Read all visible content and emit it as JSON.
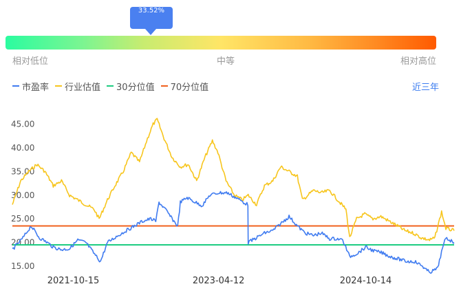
{
  "gauge": {
    "percent_label": "33.52%",
    "percent": 33.52,
    "low_label": "相对低位",
    "mid_label": "中等",
    "high_label": "相对高位"
  },
  "legend": [
    {
      "label": "市盈率",
      "color": "#3f7bf0"
    },
    {
      "label": "行业估值",
      "color": "#f7c51c"
    },
    {
      "label": "30分位值",
      "color": "#1ccc80"
    },
    {
      "label": "70分位值",
      "color": "#f0601c"
    }
  ],
  "range_label": "近三年",
  "chart_data": {
    "type": "line",
    "x_ticks": [
      "2021-10-15",
      "2023-04-12",
      "2024-10-14"
    ],
    "y_ticks": [
      "15.00",
      "20.00",
      "25.00",
      "30.00",
      "35.00",
      "40.00",
      "45.00"
    ],
    "ylim": [
      13,
      48
    ],
    "xlim": [
      "2021-03-01",
      "2025-09-10"
    ],
    "series": [
      {
        "name": "市盈率",
        "color": "#3f7bf0",
        "points": [
          [
            "2021-03-01",
            18.5
          ],
          [
            "2021-04-10",
            21
          ],
          [
            "2021-05-10",
            23.5
          ],
          [
            "2021-06-10",
            21
          ],
          [
            "2021-07-10",
            20
          ],
          [
            "2021-08-01",
            19
          ],
          [
            "2021-09-01",
            18.5
          ],
          [
            "2021-10-01",
            18.7
          ],
          [
            "2021-11-01",
            20.5
          ],
          [
            "2021-12-01",
            20
          ],
          [
            "2022-01-10",
            17
          ],
          [
            "2022-01-25",
            16
          ],
          [
            "2022-02-20",
            20
          ],
          [
            "2022-04-01",
            21.5
          ],
          [
            "2022-05-01",
            22.5
          ],
          [
            "2022-06-01",
            23.5
          ],
          [
            "2022-07-01",
            24.5
          ],
          [
            "2022-08-01",
            25
          ],
          [
            "2022-08-20",
            24.5
          ],
          [
            "2022-09-01",
            28.5
          ],
          [
            "2022-09-25",
            27
          ],
          [
            "2022-10-20",
            25
          ],
          [
            "2022-11-10",
            23.5
          ],
          [
            "2022-11-20",
            28.5
          ],
          [
            "2022-12-15",
            29.5
          ],
          [
            "2023-01-15",
            28.5
          ],
          [
            "2023-02-10",
            27.8
          ],
          [
            "2023-03-10",
            30
          ],
          [
            "2023-04-12",
            30.5
          ],
          [
            "2023-05-15",
            30.5
          ],
          [
            "2023-06-15",
            29.5
          ],
          [
            "2023-07-15",
            28.5
          ],
          [
            "2023-07-31",
            28
          ],
          [
            "2023-08-01",
            20
          ],
          [
            "2023-09-01",
            21
          ],
          [
            "2023-10-01",
            22
          ],
          [
            "2023-11-01",
            22.5
          ],
          [
            "2023-12-01",
            24
          ],
          [
            "2024-01-01",
            25.5
          ],
          [
            "2024-02-01",
            23.5
          ],
          [
            "2024-03-01",
            22
          ],
          [
            "2024-04-01",
            21.5
          ],
          [
            "2024-05-01",
            22
          ],
          [
            "2024-06-01",
            20.8
          ],
          [
            "2024-07-01",
            20.8
          ],
          [
            "2024-07-20",
            20.5
          ],
          [
            "2024-08-15",
            17
          ],
          [
            "2024-09-15",
            17.8
          ],
          [
            "2024-10-14",
            19
          ],
          [
            "2024-11-15",
            18.2
          ],
          [
            "2024-12-15",
            17.8
          ],
          [
            "2025-01-15",
            17
          ],
          [
            "2025-02-15",
            16.5
          ],
          [
            "2025-03-15",
            16
          ],
          [
            "2025-04-15",
            16
          ],
          [
            "2025-05-15",
            15
          ],
          [
            "2025-06-01",
            14
          ],
          [
            "2025-06-15",
            13.8
          ],
          [
            "2025-07-10",
            14.5
          ],
          [
            "2025-07-25",
            18
          ],
          [
            "2025-08-10",
            21
          ],
          [
            "2025-09-10",
            20
          ]
        ]
      },
      {
        "name": "行业估值",
        "color": "#f7c51c",
        "points": [
          [
            "2021-03-01",
            28
          ],
          [
            "2021-04-01",
            33
          ],
          [
            "2021-05-01",
            35
          ],
          [
            "2021-06-01",
            36.5
          ],
          [
            "2021-07-01",
            35
          ],
          [
            "2021-08-01",
            32
          ],
          [
            "2021-09-01",
            33
          ],
          [
            "2021-10-01",
            30
          ],
          [
            "2021-11-01",
            29
          ],
          [
            "2021-12-01",
            28
          ],
          [
            "2022-01-01",
            27
          ],
          [
            "2022-01-20",
            25
          ],
          [
            "2022-02-20",
            29
          ],
          [
            "2022-03-20",
            32
          ],
          [
            "2022-04-20",
            35
          ],
          [
            "2022-05-20",
            39
          ],
          [
            "2022-06-20",
            37
          ],
          [
            "2022-07-20",
            42
          ],
          [
            "2022-08-10",
            45
          ],
          [
            "2022-08-25",
            46
          ],
          [
            "2022-09-20",
            42
          ],
          [
            "2022-10-20",
            38
          ],
          [
            "2022-11-20",
            36
          ],
          [
            "2022-12-20",
            36.5
          ],
          [
            "2023-01-20",
            33
          ],
          [
            "2023-02-20",
            38
          ],
          [
            "2023-03-20",
            41.5
          ],
          [
            "2023-04-10",
            39
          ],
          [
            "2023-05-10",
            33
          ],
          [
            "2023-06-10",
            30
          ],
          [
            "2023-07-10",
            29
          ],
          [
            "2023-08-01",
            30
          ],
          [
            "2023-09-01",
            28
          ],
          [
            "2023-10-01",
            32
          ],
          [
            "2023-11-01",
            33
          ],
          [
            "2023-12-01",
            36
          ],
          [
            "2024-01-01",
            35
          ],
          [
            "2024-02-01",
            34
          ],
          [
            "2024-02-20",
            29
          ],
          [
            "2024-04-01",
            31
          ],
          [
            "2024-05-01",
            30.5
          ],
          [
            "2024-06-01",
            31
          ],
          [
            "2024-07-01",
            29
          ],
          [
            "2024-08-01",
            27
          ],
          [
            "2024-08-15",
            21
          ],
          [
            "2024-09-10",
            25
          ],
          [
            "2024-10-10",
            26
          ],
          [
            "2024-11-10",
            25
          ],
          [
            "2024-12-10",
            25.5
          ],
          [
            "2025-01-10",
            24.5
          ],
          [
            "2025-02-10",
            23.5
          ],
          [
            "2025-03-10",
            22.5
          ],
          [
            "2025-04-10",
            22
          ],
          [
            "2025-05-10",
            21
          ],
          [
            "2025-06-10",
            20.5
          ],
          [
            "2025-06-30",
            21
          ],
          [
            "2025-07-25",
            26.5
          ],
          [
            "2025-08-10",
            23
          ],
          [
            "2025-09-10",
            22.5
          ]
        ]
      },
      {
        "name": "30分位值",
        "color": "#1ccc80",
        "points": [
          [
            "2021-03-01",
            19.5
          ],
          [
            "2025-09-10",
            19.5
          ]
        ]
      },
      {
        "name": "70分位值",
        "color": "#f0601c",
        "points": [
          [
            "2021-03-01",
            23.5
          ],
          [
            "2025-09-10",
            23.5
          ]
        ]
      }
    ]
  }
}
